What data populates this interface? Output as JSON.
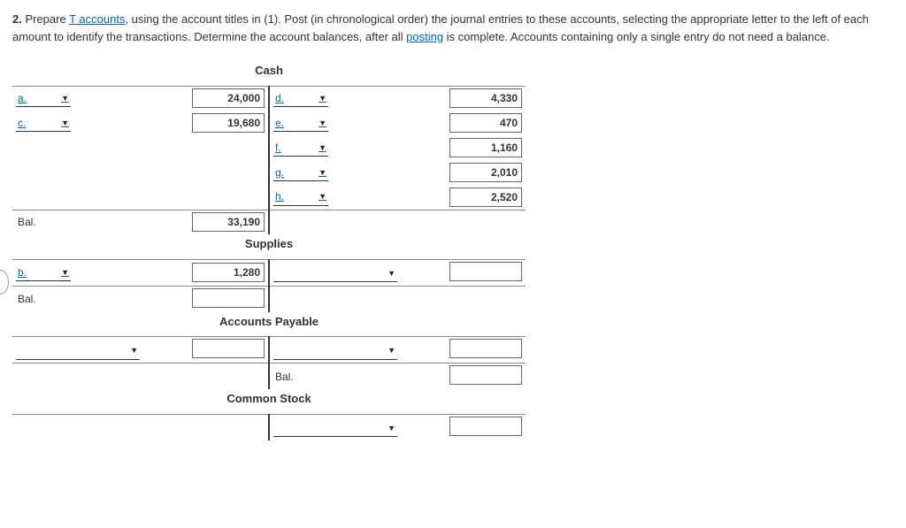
{
  "instructions": {
    "prefix": "2.",
    "text_before_link1": "  Prepare ",
    "link1": "T accounts",
    "text_mid1": ", using the account titles in (1). Post (in chronological order) the journal entries to these accounts, selecting the appropriate letter to the left of each amount to identify the transactions. Determine the account balances, after all ",
    "link2": "posting",
    "text_after": " is complete. Accounts containing only a single entry do not need a balance."
  },
  "accounts": {
    "cash": {
      "title": "Cash",
      "debits": [
        {
          "sel": "a.",
          "val": "24,000",
          "link": true
        },
        {
          "sel": "c.",
          "val": "19,680",
          "link": true
        }
      ],
      "credits": [
        {
          "sel": "d.",
          "val": "4,330",
          "link": true
        },
        {
          "sel": "e.",
          "val": "470",
          "link": true
        },
        {
          "sel": "f.",
          "val": "1,160",
          "link": true
        },
        {
          "sel": "g.",
          "val": "2,010",
          "link": true
        },
        {
          "sel": "h.",
          "val": "2,520",
          "link": true
        }
      ],
      "bal_label": "Bal.",
      "bal_value": "33,190"
    },
    "supplies": {
      "title": "Supplies",
      "row1_sel": "b.",
      "row1_val": "1,280",
      "bal_label": "Bal."
    },
    "ap": {
      "title": "Accounts Payable",
      "credit_bal_label": "Bal."
    },
    "cs": {
      "title": "Common Stock"
    }
  }
}
